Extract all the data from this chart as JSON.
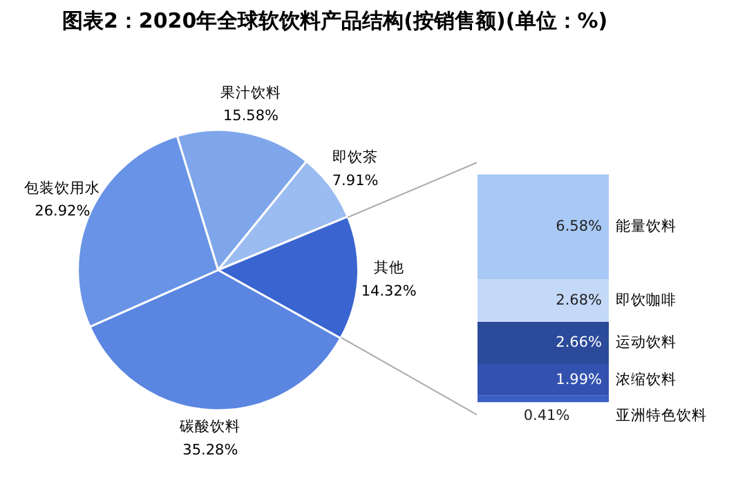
{
  "chart_data": [
    {
      "type": "pie",
      "title": "图表2：2020年全球软饮料产品结构(按销售额)(单位：%)",
      "categories": [
        "果汁饮料",
        "即饮茶",
        "其他",
        "碳酸饮料",
        "包装饮用水"
      ],
      "values": [
        15.58,
        7.91,
        14.32,
        35.28,
        26.92
      ],
      "value_labels": [
        "15.58%",
        "7.91%",
        "14.32%",
        "35.28%",
        "26.92%"
      ],
      "colors": [
        "#7fa6ea",
        "#9bbcf1",
        "#3a64d0",
        "#5a86e2",
        "#6893e6"
      ]
    },
    {
      "type": "bar",
      "stacked": true,
      "categories": [
        null
      ],
      "series": [
        {
          "name": "亚洲特色饮料",
          "color": "#3a5ec4",
          "values": [
            0.41
          ],
          "value_labels": [
            "0.41%"
          ]
        },
        {
          "name": "浓缩饮料",
          "color": "#3352b0",
          "values": [
            1.99
          ],
          "value_labels": [
            "1.99%"
          ]
        },
        {
          "name": "运动饮料",
          "color": "#2b4a9a",
          "values": [
            2.66
          ],
          "value_labels": [
            "2.66%"
          ]
        },
        {
          "name": "即饮咖啡",
          "color": "#c4d9f8",
          "values": [
            2.68
          ],
          "value_labels": [
            "2.68%"
          ]
        },
        {
          "name": "能量饮料",
          "color": "#a8c8f5",
          "values": [
            6.58
          ],
          "value_labels": [
            "6.58%"
          ]
        }
      ]
    }
  ]
}
